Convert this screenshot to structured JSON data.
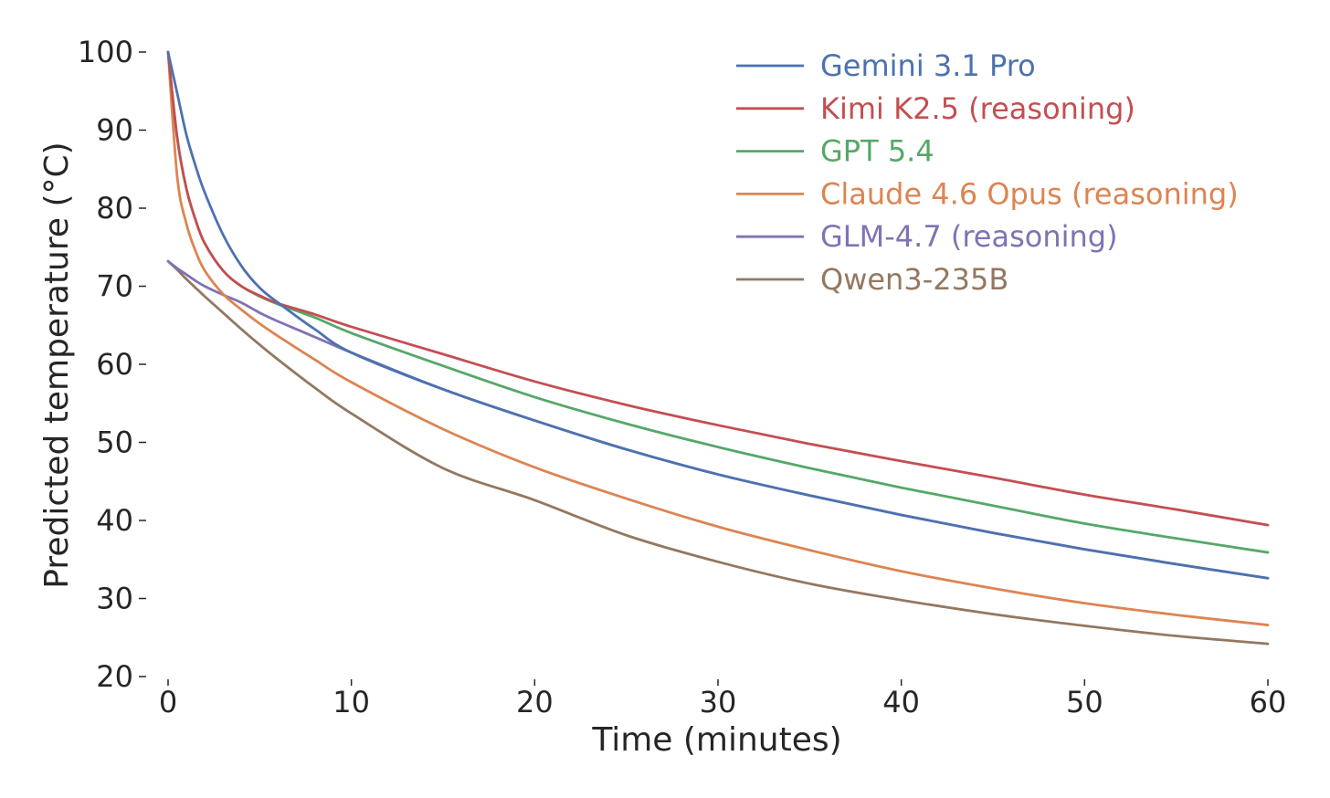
{
  "chart_data": {
    "type": "line",
    "title": "",
    "xlabel": "Time (minutes)",
    "ylabel": "Predicted temperature (°C)",
    "xlim": [
      0,
      60
    ],
    "ylim": [
      20,
      100
    ],
    "xticks": [
      0,
      10,
      20,
      30,
      40,
      50,
      60
    ],
    "yticks": [
      20,
      30,
      40,
      50,
      60,
      70,
      80,
      90,
      100
    ],
    "grid": false,
    "legend_position": "top-right",
    "x": [
      0,
      0.5,
      1,
      1.5,
      2,
      3,
      4,
      5,
      6,
      8,
      10,
      15,
      20,
      25,
      30,
      35,
      40,
      45,
      50,
      55,
      60
    ],
    "series": [
      {
        "name": "Gemini 3.1 Pro",
        "color": "#4c72b0",
        "values": [
          100,
          94.7,
          89.4,
          85.4,
          82.0,
          76.6,
          72.6,
          69.8,
          67.9,
          64.5,
          61.5,
          56.8,
          52.8,
          49.1,
          45.9,
          43.2,
          40.7,
          38.4,
          36.3,
          34.4,
          32.6
        ]
      },
      {
        "name": "Kimi K2.5 (reasoning)",
        "color": "#c44e52",
        "values": [
          100,
          89.0,
          82.5,
          78.5,
          75.5,
          72.0,
          70.0,
          68.8,
          67.8,
          66.4,
          64.8,
          61.3,
          57.8,
          54.8,
          52.2,
          49.8,
          47.6,
          45.5,
          43.3,
          41.4,
          39.4
        ]
      },
      {
        "name": "GPT 5.4",
        "color": "#55a868",
        "values": [
          100,
          89.0,
          82.5,
          78.5,
          75.5,
          72.0,
          70.0,
          68.7,
          67.7,
          66.0,
          64.0,
          59.8,
          55.8,
          52.4,
          49.4,
          46.7,
          44.2,
          41.9,
          39.6,
          37.7,
          35.9
        ]
      },
      {
        "name": "Claude 4.6 Opus (reasoning)",
        "color": "#dd8452",
        "values": [
          100,
          84.0,
          78.0,
          74.5,
          72.0,
          69.0,
          67.0,
          65.2,
          63.6,
          60.6,
          57.7,
          51.7,
          46.8,
          42.8,
          39.2,
          36.2,
          33.5,
          31.3,
          29.4,
          27.9,
          26.6
        ]
      },
      {
        "name": "GLM-4.7 (reasoning)",
        "color": "#8172b3",
        "values": [
          73.2,
          72.3,
          71.5,
          70.7,
          70.0,
          68.9,
          67.9,
          66.6,
          65.5,
          63.5,
          61.5,
          56.8,
          52.8,
          49.1,
          45.9,
          43.2,
          40.7,
          38.4,
          36.3,
          34.4,
          32.6
        ]
      },
      {
        "name": "Qwen3-235B",
        "color": "#937860",
        "values": [
          73.2,
          72.1,
          70.9,
          69.8,
          68.7,
          66.6,
          64.5,
          62.5,
          60.6,
          57.0,
          53.7,
          46.7,
          42.6,
          38.1,
          34.7,
          31.9,
          29.8,
          28.0,
          26.5,
          25.2,
          24.2
        ]
      }
    ]
  }
}
